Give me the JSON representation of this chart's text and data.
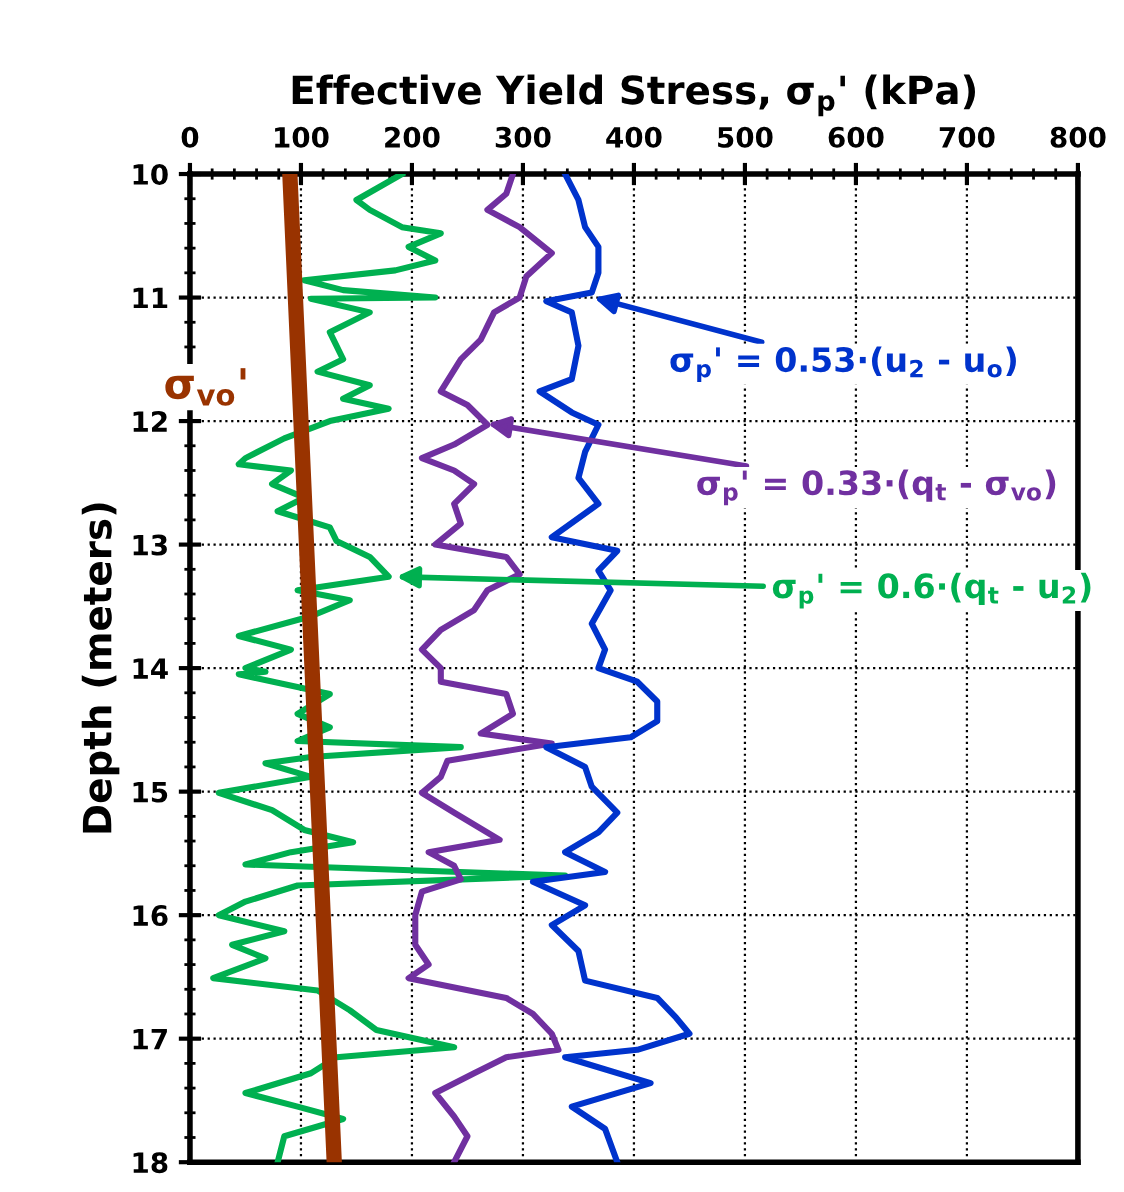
{
  "chart_data": {
    "type": "line",
    "xlabel": "Effective Yield Stress, σ$_{p}$' (kPa)",
    "ylabel": "Depth (meters)",
    "xlim": [
      0,
      800
    ],
    "xticks": [
      0,
      100,
      200,
      300,
      400,
      500,
      600,
      700,
      800
    ],
    "ylim": [
      18,
      10
    ],
    "yticks": [
      10,
      11,
      12,
      13,
      14,
      15,
      16,
      17,
      18
    ],
    "grid": true,
    "marker": "none",
    "line_style": "solid",
    "series": [
      {
        "color": "#00b050",
        "x": [
          191,
          150,
          162,
          191,
          226,
          197,
          221,
          185,
          103,
          138,
          221,
          109,
          162,
          126,
          138,
          115,
          162,
          138,
          179,
          126,
          85,
          50,
          44,
          91,
          74,
          103,
          79,
          126,
          132,
          162,
          179,
          97,
          144,
          109,
          44,
          91,
          50,
          68,
          44,
          126,
          97,
          126,
          97,
          244,
          109,
          68,
          109,
          26,
          74,
          103,
          147,
          91,
          50,
          338,
          97,
          50,
          26,
          85,
          38,
          68,
          21,
          115,
          144,
          168,
          238,
          132,
          109,
          50,
          97,
          138,
          85,
          79
        ],
        "values": [
          10.0,
          10.21,
          10.29,
          10.43,
          10.48,
          10.59,
          10.7,
          10.78,
          10.86,
          10.94,
          11.0,
          11.01,
          11.12,
          11.28,
          11.5,
          11.6,
          11.71,
          11.82,
          11.9,
          12.0,
          12.14,
          12.3,
          12.35,
          12.4,
          12.51,
          12.62,
          12.73,
          12.86,
          12.97,
          13.1,
          13.26,
          13.37,
          13.45,
          13.58,
          13.74,
          13.85,
          14.0,
          14.03,
          14.05,
          14.21,
          14.37,
          14.48,
          14.59,
          14.64,
          14.72,
          14.77,
          14.88,
          15.01,
          15.15,
          15.31,
          15.41,
          15.49,
          15.59,
          15.68,
          15.76,
          15.89,
          16.0,
          16.13,
          16.24,
          16.35,
          16.51,
          16.61,
          16.77,
          16.93,
          17.07,
          17.15,
          17.28,
          17.44,
          17.55,
          17.65,
          17.79,
          18.0
        ]
      },
      {
        "color": "#7030a0",
        "x": [
          291,
          285,
          268,
          297,
          326,
          303,
          297,
          274,
          262,
          244,
          226,
          250,
          268,
          238,
          209,
          238,
          256,
          238,
          244,
          221,
          285,
          297,
          268,
          256,
          226,
          209,
          226,
          226,
          285,
          291,
          262,
          326,
          232,
          226,
          209,
          238,
          279,
          215,
          238,
          244,
          209,
          203,
          203,
          215,
          197,
          285,
          309,
          326,
          332,
          285,
          256,
          221,
          238,
          250,
          238
        ],
        "values": [
          10.0,
          10.16,
          10.29,
          10.43,
          10.64,
          10.83,
          11.0,
          11.12,
          11.34,
          11.5,
          11.76,
          11.87,
          12.03,
          12.19,
          12.3,
          12.4,
          12.51,
          12.67,
          12.83,
          13.0,
          13.1,
          13.24,
          13.37,
          13.53,
          13.69,
          13.85,
          14.0,
          14.11,
          14.21,
          14.37,
          14.53,
          14.61,
          14.75,
          14.88,
          15.01,
          15.17,
          15.39,
          15.49,
          15.6,
          15.71,
          15.81,
          16.0,
          16.24,
          16.4,
          16.51,
          16.67,
          16.8,
          16.96,
          17.09,
          17.15,
          17.28,
          17.44,
          17.63,
          17.79,
          18.0
        ]
      },
      {
        "color": "#0033cc",
        "x": [
          338,
          350,
          356,
          368,
          368,
          362,
          321,
          344,
          350,
          344,
          315,
          344,
          368,
          356,
          350,
          368,
          326,
          385,
          368,
          379,
          362,
          374,
          368,
          403,
          421,
          421,
          397,
          321,
          356,
          362,
          385,
          368,
          338,
          374,
          309,
          356,
          326,
          350,
          356,
          421,
          438,
          450,
          403,
          338,
          415,
          344,
          374,
          385
        ],
        "values": [
          10.0,
          10.21,
          10.43,
          10.59,
          10.8,
          10.96,
          11.03,
          11.12,
          11.39,
          11.66,
          11.76,
          11.93,
          12.03,
          12.25,
          12.46,
          12.67,
          12.94,
          13.05,
          13.21,
          13.37,
          13.64,
          13.85,
          14.0,
          14.11,
          14.27,
          14.43,
          14.56,
          14.64,
          14.8,
          14.96,
          15.17,
          15.33,
          15.49,
          15.65,
          15.73,
          15.92,
          16.08,
          16.29,
          16.53,
          16.67,
          16.83,
          16.96,
          17.09,
          17.15,
          17.36,
          17.55,
          17.73,
          18.0
        ]
      },
      {
        "color": "#993300",
        "x": [
          90,
          130
        ],
        "values": [
          10,
          18
        ]
      }
    ],
    "annotations": [
      {
        "text": "σ$_{p}$' = 0.6·(q$_{t}$ - u$_{2}$)",
        "x": 186,
        "y": 13.26
      },
      {
        "text": "σ$_{p}$' = 0.33·(q$_{t}$ - σ$_{vo}$)",
        "x": 268,
        "y": 12.02
      },
      {
        "text": "σ$_{p}$' = 0.53·(u$_{2}$ - u$_{o}$)",
        "x": 364,
        "y": 11.0
      },
      {
        "text": "σ$_{vo}$'",
        "x": 110,
        "y": 11.5
      }
    ]
  }
}
